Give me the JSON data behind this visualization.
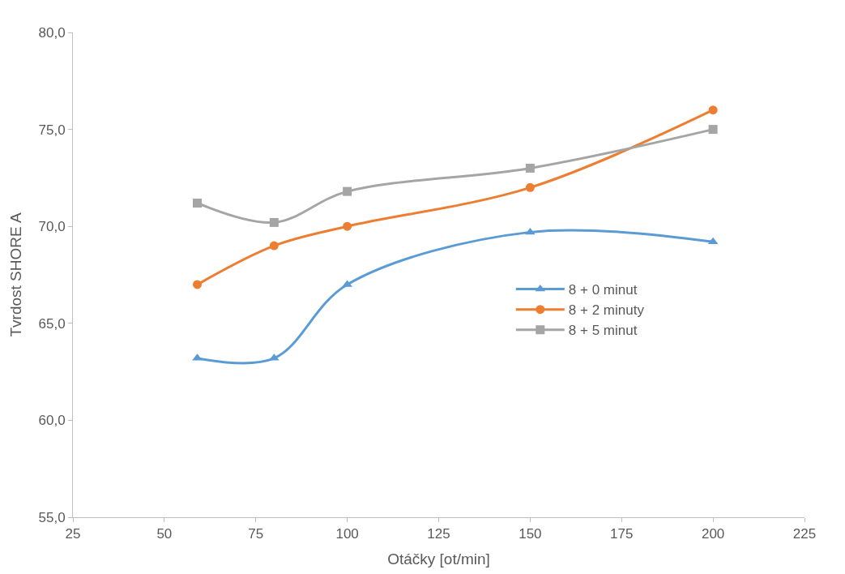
{
  "chart_data": {
    "type": "line",
    "xlabel": "Otáčky [ot/min]",
    "ylabel": "Tvrdost SHORE A",
    "x": [
      59,
      80,
      100,
      150,
      200
    ],
    "series": [
      {
        "name": "8 + 0 minut",
        "color": "#5b9bd5",
        "marker": "triangle",
        "values": [
          63.2,
          63.2,
          67.0,
          69.7,
          69.2
        ]
      },
      {
        "name": "8 + 2 minuty",
        "color": "#ed7d31",
        "marker": "circle",
        "values": [
          67.0,
          69.0,
          70.0,
          72.0,
          76.0
        ]
      },
      {
        "name": "8 + 5 minut",
        "color": "#a5a5a5",
        "marker": "square",
        "values": [
          71.2,
          70.2,
          71.8,
          73.0,
          75.0
        ]
      }
    ],
    "xlim": [
      25,
      225
    ],
    "xticks": [
      25,
      50,
      75,
      100,
      125,
      150,
      175,
      200,
      225
    ],
    "ylim": [
      55,
      80
    ],
    "yticks": [
      {
        "value": 55,
        "label": "55,0"
      },
      {
        "value": 60,
        "label": "60,0"
      },
      {
        "value": 65,
        "label": "65,0"
      },
      {
        "value": 70,
        "label": "70,0"
      },
      {
        "value": 75,
        "label": "75,0"
      },
      {
        "value": 80,
        "label": "80,0"
      }
    ],
    "legend": "right",
    "line_style": "solid"
  }
}
